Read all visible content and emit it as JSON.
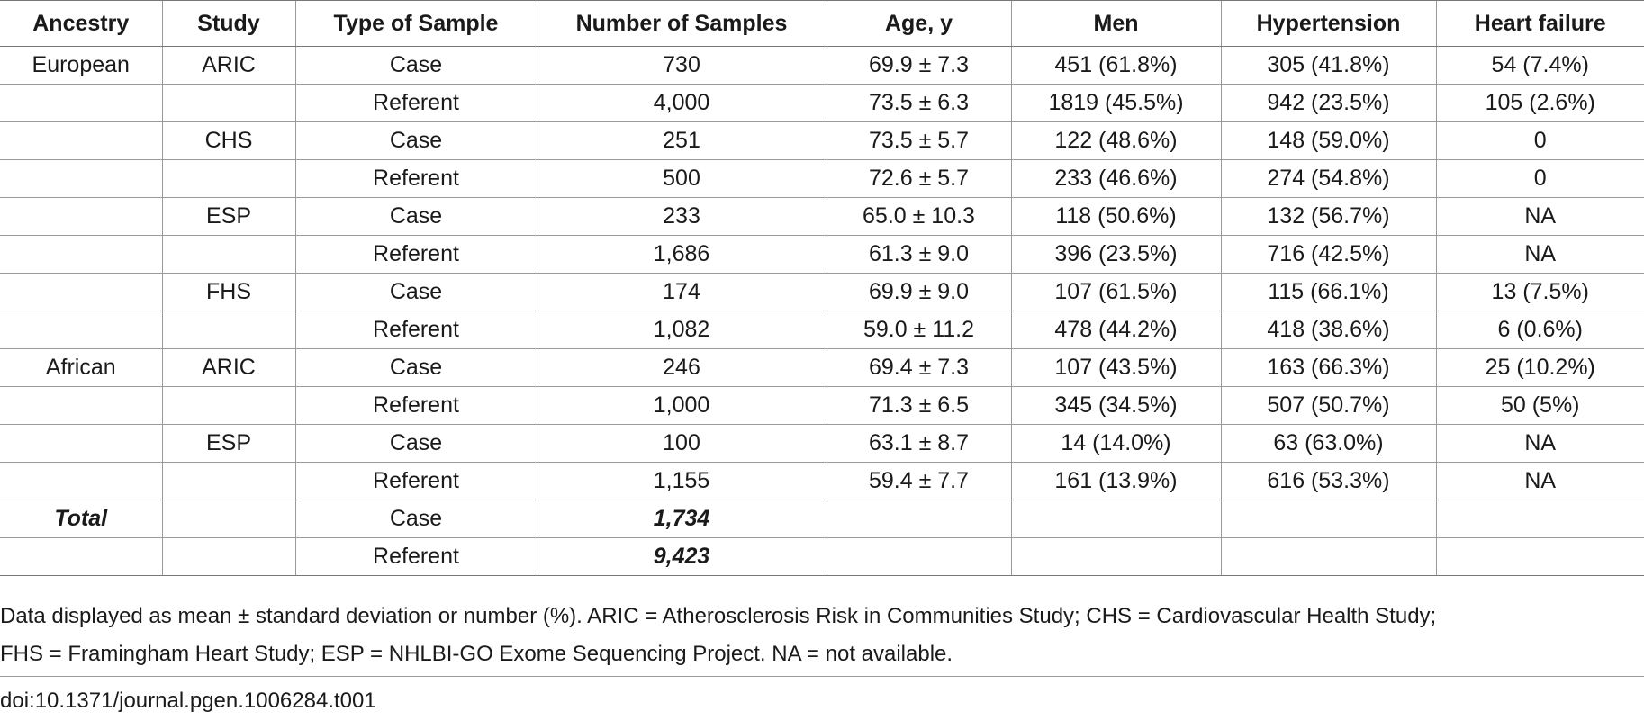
{
  "table": {
    "headers": [
      "Ancestry",
      "Study",
      "Type of Sample",
      "Number of Samples",
      "Age, y",
      "Men",
      "Hypertension",
      "Heart failure"
    ],
    "rows": [
      [
        "European",
        "ARIC",
        "Case",
        "730",
        "69.9 ± 7.3",
        "451 (61.8%)",
        "305 (41.8%)",
        "54 (7.4%)"
      ],
      [
        "",
        "",
        "Referent",
        "4,000",
        "73.5 ± 6.3",
        "1819 (45.5%)",
        "942 (23.5%)",
        "105 (2.6%)"
      ],
      [
        "",
        "CHS",
        "Case",
        "251",
        "73.5 ± 5.7",
        "122 (48.6%)",
        "148 (59.0%)",
        "0"
      ],
      [
        "",
        "",
        "Referent",
        "500",
        "72.6 ± 5.7",
        "233 (46.6%)",
        "274 (54.8%)",
        "0"
      ],
      [
        "",
        "ESP",
        "Case",
        "233",
        "65.0 ± 10.3",
        "118 (50.6%)",
        "132 (56.7%)",
        "NA"
      ],
      [
        "",
        "",
        "Referent",
        "1,686",
        "61.3 ± 9.0",
        "396 (23.5%)",
        "716 (42.5%)",
        "NA"
      ],
      [
        "",
        "FHS",
        "Case",
        "174",
        "69.9 ± 9.0",
        "107 (61.5%)",
        "115 (66.1%)",
        "13 (7.5%)"
      ],
      [
        "",
        "",
        "Referent",
        "1,082",
        "59.0 ± 11.2",
        "478 (44.2%)",
        "418 (38.6%)",
        "6 (0.6%)"
      ],
      [
        "African",
        "ARIC",
        "Case",
        "246",
        "69.4 ± 7.3",
        "107 (43.5%)",
        "163 (66.3%)",
        "25 (10.2%)"
      ],
      [
        "",
        "",
        "Referent",
        "1,000",
        "71.3 ± 6.5",
        "345 (34.5%)",
        "507 (50.7%)",
        "50 (5%)"
      ],
      [
        "",
        "ESP",
        "Case",
        "100",
        "63.1 ± 8.7",
        "14 (14.0%)",
        "63 (63.0%)",
        "NA"
      ],
      [
        "",
        "",
        "Referent",
        "1,155",
        "59.4 ± 7.7",
        "161 (13.9%)",
        "616 (53.3%)",
        "NA"
      ]
    ],
    "total_rows": [
      [
        "Total",
        "",
        "Case",
        "1,734",
        "",
        "",
        "",
        ""
      ],
      [
        "",
        "",
        "Referent",
        "9,423",
        "",
        "",
        "",
        ""
      ]
    ]
  },
  "footnote": {
    "line1": "Data displayed as mean ± standard deviation or number (%). ARIC = Atherosclerosis Risk in Communities Study; CHS = Cardiovascular Health Study;",
    "line2": "FHS = Framingham Heart Study; ESP = NHLBI-GO Exome Sequencing Project. NA = not available."
  },
  "doi": "doi:10.1371/journal.pgen.1006284.t001"
}
